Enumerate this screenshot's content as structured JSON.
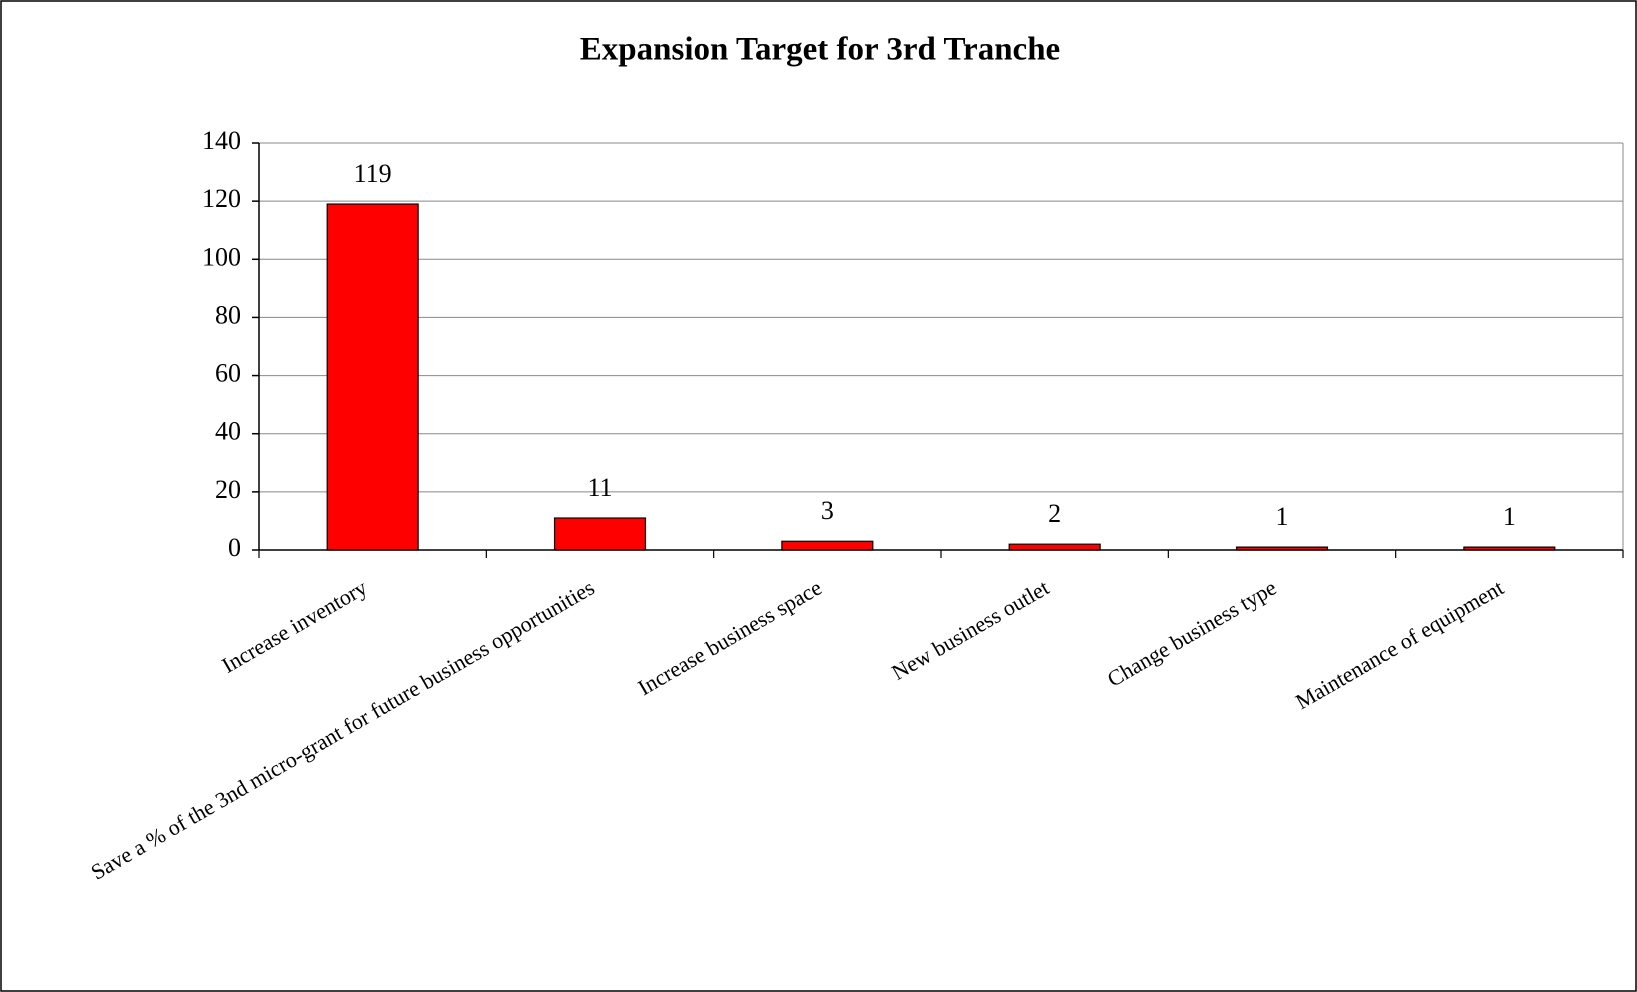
{
  "chart_data": {
    "type": "bar",
    "title": "Expansion Target for 3rd Tranche",
    "categories": [
      "Increase inventory",
      "Save a % of the 3nd micro-grant for future business opportunities",
      "Increase business space",
      "New business outlet",
      "Change business type",
      "Maintenance of equipment"
    ],
    "values": [
      119,
      11,
      3,
      2,
      1,
      1
    ],
    "color": "#ff0000",
    "ylim": [
      0,
      140
    ],
    "yticks": [
      0,
      20,
      40,
      60,
      80,
      100,
      120,
      140
    ],
    "grid": true
  }
}
